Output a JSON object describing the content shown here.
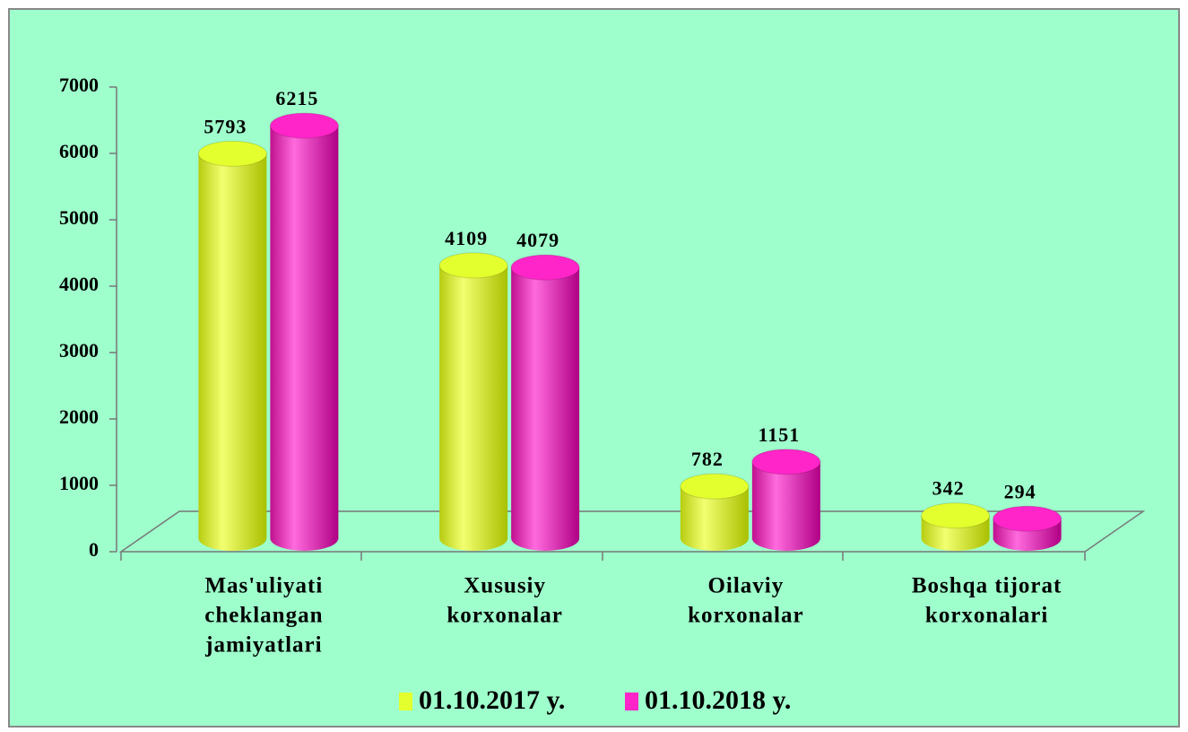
{
  "chart_data": {
    "type": "bar3d",
    "categories": [
      [
        "Mas'uliyati",
        "cheklangan",
        "jamiyatlari"
      ],
      [
        "Xususiy",
        "korxonalar"
      ],
      [
        "Oilaviy",
        "korxonalar"
      ],
      [
        "Boshqa  tijorat",
        "korxonalari"
      ]
    ],
    "series": [
      {
        "name": "01.10.2017 y.",
        "color": "#e4ff2e",
        "values": [
          5793,
          4109,
          782,
          342
        ]
      },
      {
        "name": "01.10.2018 y.",
        "color": "#ff25c8",
        "values": [
          6215,
          4079,
          1151,
          294
        ]
      }
    ],
    "ylim": [
      0,
      7000
    ],
    "yticks": [
      0,
      1000,
      2000,
      3000,
      4000,
      5000,
      6000,
      7000
    ],
    "legend": "bottom"
  }
}
